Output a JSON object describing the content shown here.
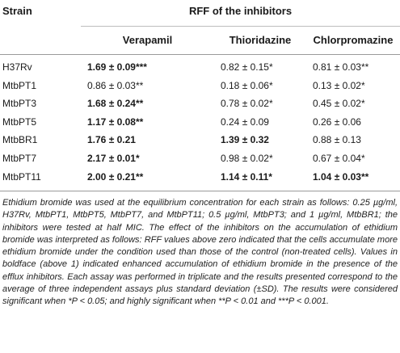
{
  "table": {
    "strain_header": "Strain",
    "group_header": "RFF of the inhibitors",
    "columns": [
      "Verapamil",
      "Thioridazine",
      "Chlorpromazine"
    ],
    "rows": [
      {
        "strain": "H37Rv",
        "cells": [
          {
            "text": "1.69 ± 0.09***",
            "bold": true
          },
          {
            "text": "0.82 ± 0.15*",
            "bold": false
          },
          {
            "text": "0.81 ± 0.03**",
            "bold": false
          }
        ]
      },
      {
        "strain": "MtbPT1",
        "cells": [
          {
            "text": "0.86 ± 0.03**",
            "bold": false
          },
          {
            "text": "0.18 ± 0.06*",
            "bold": false
          },
          {
            "text": "0.13 ± 0.02*",
            "bold": false
          }
        ]
      },
      {
        "strain": "MtbPT3",
        "cells": [
          {
            "text": "1.68 ± 0.24**",
            "bold": true
          },
          {
            "text": "0.78 ± 0.02*",
            "bold": false
          },
          {
            "text": "0.45 ± 0.02*",
            "bold": false
          }
        ]
      },
      {
        "strain": "MtbPT5",
        "cells": [
          {
            "text": "1.17 ± 0.08**",
            "bold": true
          },
          {
            "text": "0.24 ± 0.09",
            "bold": false
          },
          {
            "text": "0.26 ± 0.06",
            "bold": false
          }
        ]
      },
      {
        "strain": "MtbBR1",
        "cells": [
          {
            "text": "1.76 ± 0.21",
            "bold": true
          },
          {
            "text": "1.39 ± 0.32",
            "bold": true
          },
          {
            "text": "0.88 ± 0.13",
            "bold": false
          }
        ]
      },
      {
        "strain": "MtbPT7",
        "cells": [
          {
            "text": "2.17 ± 0.01*",
            "bold": true
          },
          {
            "text": "0.98 ± 0.02*",
            "bold": false
          },
          {
            "text": "0.67 ± 0.04*",
            "bold": false
          }
        ]
      },
      {
        "strain": "MtbPT11",
        "cells": [
          {
            "text": "2.00 ± 0.21**",
            "bold": true
          },
          {
            "text": "1.14 ± 0.11*",
            "bold": true
          },
          {
            "text": "1.04 ± 0.03**",
            "bold": true
          }
        ]
      }
    ]
  },
  "footnote": "Ethidium bromide was used at the equilibrium concentration for each strain as follows: 0.25 µg/ml, H37Rv, MtbPT1, MtbPT5, MtbPT7, and MtbPT11; 0.5 µg/ml, MtbPT3; and 1 µg/ml, MtbBR1; the inhibitors were tested at half MIC. The effect of the inhibitors on the accumulation of ethidium bromide was interpreted as follows: RFF values above zero indicated that the cells accumulate more ethidium bromide under the condition used than those of the control (non-treated cells). Values in boldface (above 1) indicated enhanced accumulation of ethidium bromide in the presence of the efflux inhibitors. Each assay was performed in triplicate and the results presented correspond to the average of three independent assays plus standard deviation (±SD). The results were considered significant when *P < 0.05; and highly significant when **P < 0.01 and ***P < 0.001."
}
